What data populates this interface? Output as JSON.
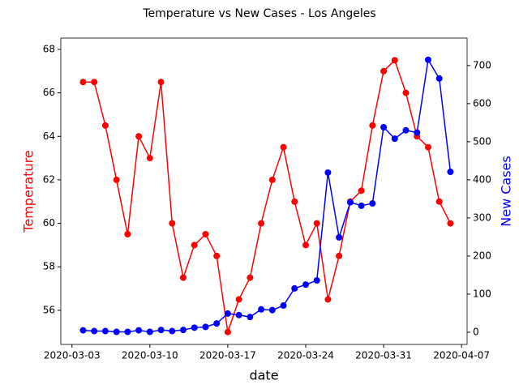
{
  "chart_data": {
    "type": "line",
    "title": "Temperature vs New Cases - Los Angeles",
    "xlabel": "date",
    "ylabel": "Temperature",
    "y2label": "New Cases",
    "x": [
      "2020-03-04",
      "2020-03-05",
      "2020-03-06",
      "2020-03-07",
      "2020-03-08",
      "2020-03-09",
      "2020-03-10",
      "2020-03-11",
      "2020-03-12",
      "2020-03-13",
      "2020-03-14",
      "2020-03-15",
      "2020-03-16",
      "2020-03-17",
      "2020-03-18",
      "2020-03-19",
      "2020-03-20",
      "2020-03-21",
      "2020-03-22",
      "2020-03-23",
      "2020-03-24",
      "2020-03-25",
      "2020-03-26",
      "2020-03-27",
      "2020-03-28",
      "2020-03-29",
      "2020-03-30",
      "2020-03-31",
      "2020-04-01",
      "2020-04-02",
      "2020-04-03",
      "2020-04-04",
      "2020-04-05",
      "2020-04-06"
    ],
    "series": [
      {
        "name": "Temperature",
        "color": "#ff0000",
        "axis": "y",
        "values": [
          66.5,
          66.5,
          64.5,
          62,
          59.5,
          64,
          63,
          66.5,
          60,
          57.5,
          59,
          59.5,
          58.5,
          55,
          56.5,
          57.5,
          60,
          62,
          63.5,
          61,
          59,
          60,
          56.5,
          58.5,
          61,
          61.5,
          64.5,
          67,
          67.5,
          66,
          64,
          63.5,
          61,
          60
        ]
      },
      {
        "name": "New Cases",
        "color": "#0000ff",
        "axis": "y2",
        "values": [
          5,
          3,
          3,
          1,
          1,
          5,
          1,
          6,
          3,
          6,
          12,
          14,
          23,
          49,
          45,
          40,
          60,
          58,
          70,
          115,
          125,
          136,
          419,
          249,
          341,
          332,
          338,
          538,
          508,
          530,
          524,
          715,
          666,
          421
        ]
      }
    ],
    "xlim": [
      "2020-03-02",
      "2020-04-07T12:00:00"
    ],
    "xticks": [
      "2020-03-03",
      "2020-03-10",
      "2020-03-17",
      "2020-03-24",
      "2020-03-31",
      "2020-04-07"
    ],
    "ylim": [
      54.43,
      68.52
    ],
    "yticks": [
      56,
      58,
      60,
      62,
      64,
      66,
      68
    ],
    "y2lim": [
      -32,
      772
    ],
    "y2ticks": [
      0,
      100,
      200,
      300,
      400,
      500,
      600,
      700
    ]
  }
}
